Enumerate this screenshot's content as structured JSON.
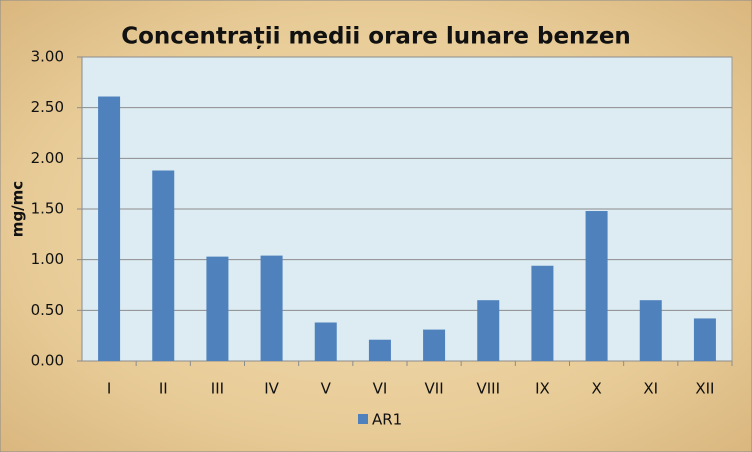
{
  "chart_data": {
    "type": "bar",
    "title": "Concentrații medii orare lunare benzen",
    "y_label": "mg/mc",
    "categories": [
      "I",
      "II",
      "III",
      "IV",
      "V",
      "VI",
      "VII",
      "VIII",
      "IX",
      "X",
      "XI",
      "XII"
    ],
    "series": [
      {
        "name": "AR1",
        "color": "#4f81bd",
        "values": [
          2.61,
          1.88,
          1.03,
          1.04,
          0.38,
          0.21,
          0.31,
          0.6,
          0.94,
          1.48,
          0.6,
          0.42
        ]
      }
    ],
    "ylim": [
      0,
      3
    ],
    "yticks": [
      {
        "value": 0,
        "label": "0.00"
      },
      {
        "value": 0.5,
        "label": "0.50"
      },
      {
        "value": 1,
        "label": "1.00"
      },
      {
        "value": 1.5,
        "label": "1.50"
      },
      {
        "value": 2,
        "label": "2.00"
      },
      {
        "value": 2.5,
        "label": "2.50"
      },
      {
        "value": 3,
        "label": "3.00"
      }
    ],
    "grid": true,
    "legend": "bottom"
  }
}
